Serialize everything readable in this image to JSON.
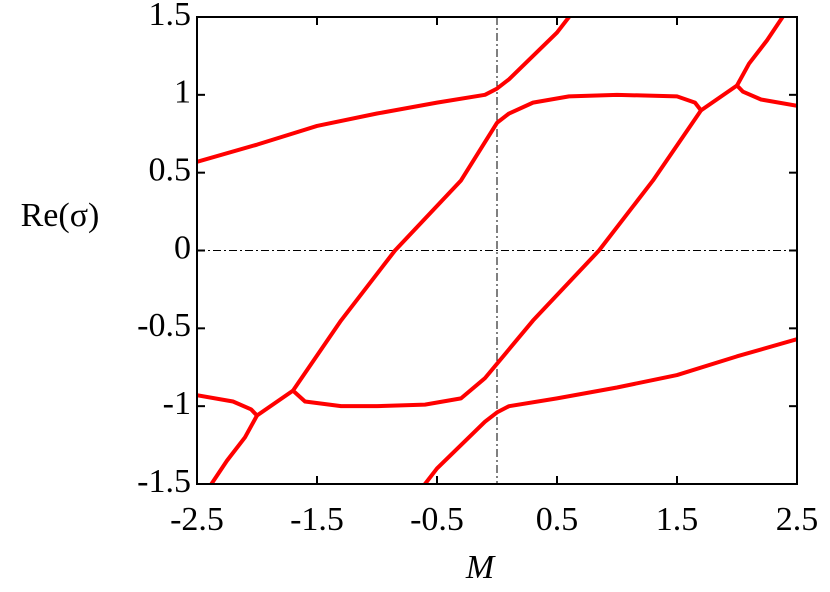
{
  "chart_data": {
    "type": "line",
    "x_label": "M",
    "y_label": "Re(σ)",
    "xlim": [
      -2.5,
      2.5
    ],
    "ylim": [
      -1.5,
      1.5
    ],
    "xticks": [
      -2.5,
      -1.5,
      -0.5,
      0.5,
      1.5,
      2.5
    ],
    "yticks": [
      1.5,
      1,
      0.5,
      0,
      -0.5,
      -1,
      -1.5
    ],
    "reference_lines": {
      "x": [
        0
      ],
      "y": [
        0
      ],
      "color": "#000000"
    },
    "series": [
      {
        "color": "#ff0000",
        "x": [
          -2.5,
          -2,
          -1.5,
          -1,
          -0.5,
          -0.1,
          0,
          0.1,
          0.3,
          0.5,
          0.6
        ],
        "values": [
          0.57,
          0.68,
          0.8,
          0.88,
          0.95,
          1.0,
          1.04,
          1.1,
          1.25,
          1.4,
          1.5
        ]
      },
      {
        "color": "#ff0000",
        "x": [
          -0.6,
          -0.5,
          -0.3,
          -0.1,
          0,
          0.1,
          0.5,
          1,
          1.5,
          2,
          2.5
        ],
        "values": [
          -1.5,
          -1.4,
          -1.25,
          -1.1,
          -1.04,
          -1.0,
          -0.95,
          -0.88,
          -0.8,
          -0.68,
          -0.57
        ]
      },
      {
        "color": "#ff0000",
        "x": [
          -1.7,
          -1.6,
          -1.3,
          -1,
          -0.6,
          -0.3,
          -0.1,
          0.3,
          0.85,
          1.3,
          1.7,
          1.65,
          1.5,
          1,
          0.6,
          0.3,
          0.1,
          0,
          -0.3,
          -0.85,
          -1.3,
          -1.7
        ],
        "values": [
          -0.9,
          -0.97,
          -1.0,
          -1.0,
          -0.99,
          -0.95,
          -0.82,
          -0.45,
          0,
          0.45,
          0.9,
          0.95,
          0.99,
          1.0,
          0.99,
          0.95,
          0.88,
          0.82,
          0.45,
          0,
          -0.45,
          -0.9
        ]
      },
      {
        "color": "#ff0000",
        "x": [
          1.7,
          2.0,
          2.05,
          2.2,
          2.5
        ],
        "values": [
          0.9,
          1.06,
          1.02,
          0.97,
          0.93
        ]
      },
      {
        "color": "#ff0000",
        "x": [
          2.0,
          2.1,
          2.25,
          2.38
        ],
        "values": [
          1.06,
          1.2,
          1.35,
          1.5
        ]
      },
      {
        "color": "#ff0000",
        "x": [
          -1.7,
          -2.0,
          -2.05,
          -2.2,
          -2.5
        ],
        "values": [
          -0.9,
          -1.06,
          -1.02,
          -0.97,
          -0.93
        ]
      },
      {
        "color": "#ff0000",
        "x": [
          -2.0,
          -2.1,
          -2.25,
          -2.38
        ],
        "values": [
          -1.06,
          -1.2,
          -1.35,
          -1.5
        ]
      }
    ]
  }
}
